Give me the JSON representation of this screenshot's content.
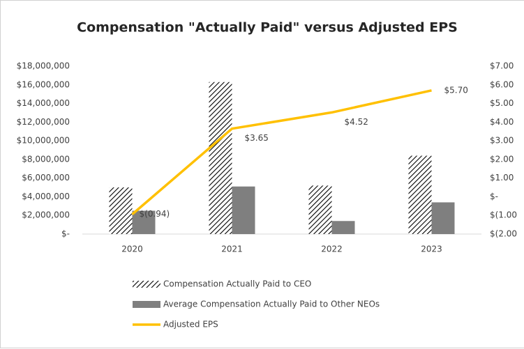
{
  "chart_data": {
    "type": "bar-line",
    "title": "Compensation \"Actually Paid\" versus Adjusted EPS",
    "categories": [
      "2020",
      "2021",
      "2022",
      "2023"
    ],
    "series": [
      {
        "name": "Compensation Actually Paid to CEO",
        "type": "bar",
        "pattern": "hatch",
        "color": "#000000",
        "values": [
          5000000,
          16300000,
          5200000,
          8400000
        ]
      },
      {
        "name": "Average Compensation Actually Paid to Other NEOs",
        "type": "bar",
        "color": "#7f7f7f",
        "values": [
          2500000,
          5100000,
          1400000,
          3400000
        ]
      },
      {
        "name": "Adjusted EPS",
        "type": "line",
        "axis": "y2",
        "color": "#ffc000",
        "values": [
          -0.94,
          3.65,
          4.52,
          5.7
        ],
        "value_labels": [
          "$(0.94)",
          "$3.65",
          "$4.52",
          "$5.70"
        ]
      }
    ],
    "ylim": [
      0,
      18000000
    ],
    "yticks": [
      {
        "value": 0,
        "label": "$-"
      },
      {
        "value": 2000000,
        "label": "$2,000,000"
      },
      {
        "value": 4000000,
        "label": "$4,000,000"
      },
      {
        "value": 6000000,
        "label": "$6,000,000"
      },
      {
        "value": 8000000,
        "label": "$8,000,000"
      },
      {
        "value": 10000000,
        "label": "$10,000,000"
      },
      {
        "value": 12000000,
        "label": "$12,000,000"
      },
      {
        "value": 14000000,
        "label": "$14,000,000"
      },
      {
        "value": 16000000,
        "label": "$16,000,000"
      },
      {
        "value": 18000000,
        "label": "$18,000,000"
      }
    ],
    "y2lim": [
      -2,
      7
    ],
    "y2ticks": [
      {
        "value": -2,
        "label": "$(2.00"
      },
      {
        "value": -1,
        "label": "$(1.00"
      },
      {
        "value": 0,
        "label": "$-"
      },
      {
        "value": 1,
        "label": "$1.00"
      },
      {
        "value": 2,
        "label": "$2.00"
      },
      {
        "value": 3,
        "label": "$3.00"
      },
      {
        "value": 4,
        "label": "$4.00"
      },
      {
        "value": 5,
        "label": "$5.00"
      },
      {
        "value": 6,
        "label": "$6.00"
      },
      {
        "value": 7,
        "label": "$7.00"
      }
    ],
    "grid": false,
    "legend": "bottom-left"
  }
}
